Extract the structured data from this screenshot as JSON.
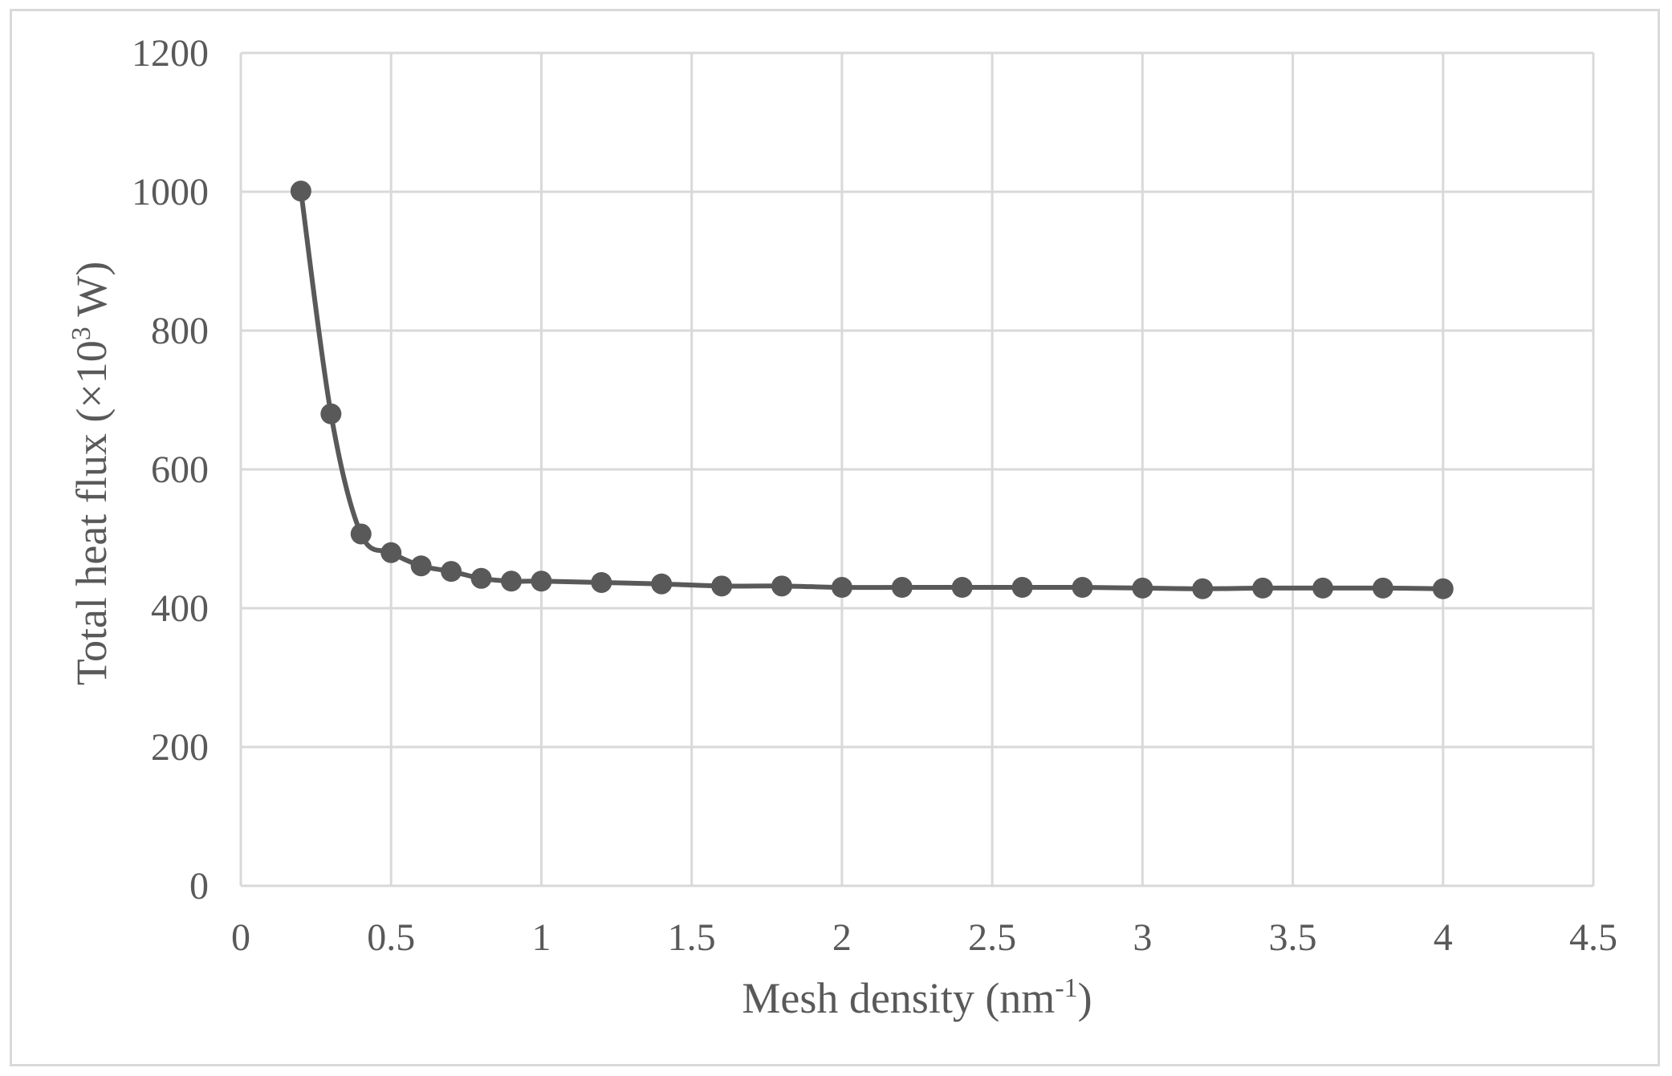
{
  "chart_data": {
    "type": "line",
    "marker": "circle",
    "smooth": true,
    "xlabel": {
      "base": "Mesh density (nm",
      "sup": "-1",
      "tail": ")"
    },
    "ylabel": {
      "base": "Total heat flux (×10",
      "sup": "3",
      "tail": " W)"
    },
    "xlim": [
      0,
      4.5
    ],
    "ylim": [
      0,
      1200
    ],
    "x_ticks": [
      "0",
      "0.5",
      "1",
      "1.5",
      "2",
      "2.5",
      "3",
      "3.5",
      "4",
      "4.5"
    ],
    "y_ticks": [
      "0",
      "200",
      "400",
      "600",
      "800",
      "1000",
      "1200"
    ],
    "grid": true,
    "legend": "none",
    "colors": {
      "series": "#595959",
      "grid": "#d9d9d9",
      "text": "#595959"
    },
    "series": [
      {
        "x": [
          0.2,
          0.3,
          0.4,
          0.5,
          0.6,
          0.7,
          0.8,
          0.9,
          1.0,
          1.2,
          1.4,
          1.6,
          1.8,
          2.0,
          2.2,
          2.4,
          2.6,
          2.8,
          3.0,
          3.2,
          3.4,
          3.6,
          3.8,
          4.0
        ],
        "y": [
          1001,
          680,
          507,
          480,
          461,
          453,
          443,
          439,
          439,
          437,
          435,
          432,
          432,
          430,
          430,
          430,
          430,
          430,
          429,
          428,
          429,
          429,
          429,
          428
        ]
      }
    ]
  }
}
